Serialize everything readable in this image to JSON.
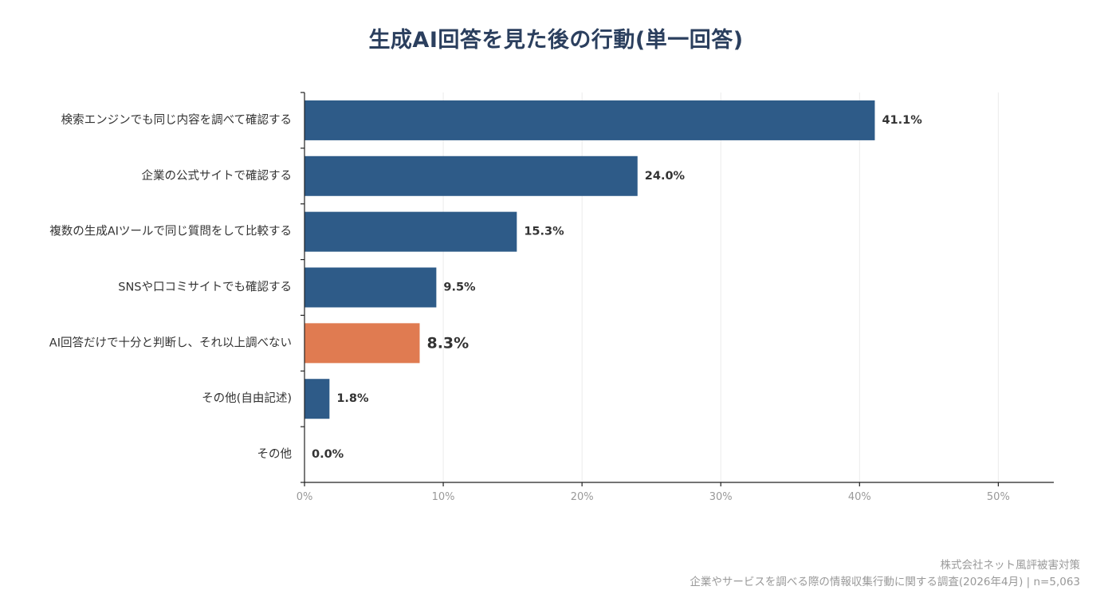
{
  "colors": {
    "bar_default": "#2e5b88",
    "bar_highlight": "#e07b51",
    "title": "#2b3f5e",
    "label": "#333333",
    "value_label": "#333333",
    "tick": "#999999",
    "grid": "#ebebeb",
    "axis": "#222222",
    "footer": "#999999"
  },
  "footer": {
    "source": "株式会社ネット風評被害対策",
    "survey": "企業やサービスを調べる際の情報収集行動に関する調査(2026年4月) | n=5,063"
  },
  "chart_data": {
    "type": "bar",
    "orientation": "horizontal",
    "title": "生成AI回答を見た後の行動(単一回答)",
    "categories": [
      "検索エンジンでも同じ内容を調べて確認する",
      "企業の公式サイトで確認する",
      "複数の生成AIツールで同じ質問をして比較する",
      "SNSや口コミサイトでも確認する",
      "AI回答だけで十分と判断し、それ以上調べない",
      "その他(自由記述)",
      "その他"
    ],
    "values": [
      41.1,
      24.0,
      15.3,
      9.5,
      8.3,
      1.8,
      0.0
    ],
    "value_labels": [
      "41.1%",
      "24.0%",
      "15.3%",
      "9.5%",
      "8.3%",
      "1.8%",
      "0.0%"
    ],
    "highlight_index": 4,
    "xlim": [
      0,
      54
    ],
    "xticks": [
      0,
      10,
      20,
      30,
      40,
      50
    ],
    "xtick_labels": [
      "0%",
      "10%",
      "20%",
      "30%",
      "40%",
      "50%"
    ],
    "xlabel": "",
    "ylabel": "",
    "grid": true,
    "legend": "none"
  }
}
